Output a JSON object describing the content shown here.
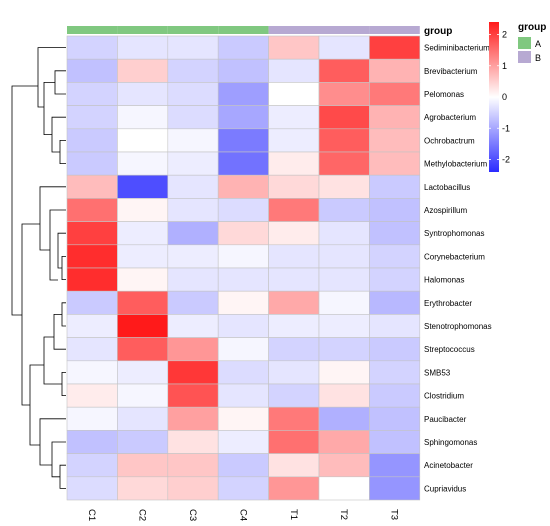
{
  "chart_data": {
    "type": "heatmap",
    "columns": [
      "C1",
      "C2",
      "C3",
      "C4",
      "T1",
      "T2",
      "T3"
    ],
    "column_groups": [
      "A",
      "A",
      "A",
      "A",
      "B",
      "B",
      "B"
    ],
    "group_annotation_label": "group",
    "rows": [
      "Sediminibacterium",
      "Brevibacterium",
      "Pelomonas",
      "Agrobacterium",
      "Ochrobactrum",
      "Methylobacterium",
      "Lactobacillus",
      "Azospirillum",
      "Syntrophomonas",
      "Corynebacterium",
      "Halomonas",
      "Erythrobacter",
      "Stenotrophomonas",
      "Streptococcus",
      "SMB53",
      "Clostridium",
      "Paucibacter",
      "Sphingomonas",
      "Acinetobacter",
      "Cupriavidus"
    ],
    "values": [
      [
        -0.5,
        -0.3,
        -0.3,
        -0.6,
        0.6,
        -0.3,
        2.0
      ],
      [
        -0.7,
        0.5,
        -0.5,
        -0.7,
        -0.3,
        1.7,
        0.8
      ],
      [
        -0.5,
        -0.3,
        -0.4,
        -1.1,
        0.0,
        1.2,
        1.4
      ],
      [
        -0.5,
        -0.1,
        -0.4,
        -1.0,
        -0.2,
        1.9,
        0.8
      ],
      [
        -0.6,
        0.0,
        -0.1,
        -1.5,
        -0.2,
        1.7,
        0.7
      ],
      [
        -0.6,
        -0.1,
        -0.2,
        -1.6,
        0.2,
        1.6,
        0.7
      ],
      [
        0.7,
        -2.0,
        -0.3,
        0.8,
        0.4,
        0.3,
        -0.6
      ],
      [
        1.5,
        0.1,
        -0.3,
        -0.4,
        1.4,
        -0.6,
        -0.7
      ],
      [
        2.0,
        -0.2,
        -0.9,
        0.4,
        0.2,
        -0.3,
        -0.7
      ],
      [
        2.2,
        -0.2,
        -0.2,
        -0.1,
        -0.3,
        -0.3,
        -0.5
      ],
      [
        2.2,
        0.1,
        -0.3,
        -0.3,
        -0.3,
        -0.3,
        -0.5
      ],
      [
        -0.6,
        1.7,
        -0.6,
        0.1,
        0.9,
        -0.1,
        -0.8
      ],
      [
        -0.2,
        2.4,
        -0.2,
        -0.3,
        -0.2,
        -0.2,
        -0.3
      ],
      [
        -0.3,
        1.7,
        1.1,
        -0.1,
        -0.5,
        -0.5,
        -0.6
      ],
      [
        -0.1,
        -0.2,
        2.1,
        -0.4,
        -0.3,
        0.1,
        -0.5
      ],
      [
        0.2,
        -0.1,
        1.8,
        -0.3,
        -0.5,
        0.3,
        -0.6
      ],
      [
        -0.1,
        -0.3,
        1.0,
        0.1,
        1.4,
        -0.9,
        -0.7
      ],
      [
        -0.7,
        -0.6,
        0.3,
        -0.2,
        1.5,
        0.9,
        -0.7
      ],
      [
        -0.5,
        0.6,
        0.6,
        -0.6,
        0.3,
        0.7,
        -1.2
      ],
      [
        -0.4,
        0.4,
        0.5,
        -0.5,
        1.1,
        0.0,
        -1.2
      ]
    ],
    "color_scale": {
      "min": -2.4,
      "max": 2.4,
      "low_color": "#2b2bff",
      "mid_color": "#ffffff",
      "high_color": "#ff1a1a",
      "legend_ticks": [
        2,
        1,
        0,
        -1,
        -2
      ]
    },
    "legend": {
      "title": "group",
      "entries": [
        {
          "label": "A",
          "color": "#80c880"
        },
        {
          "label": "B",
          "color": "#b7a9d2"
        }
      ],
      "placement": "right"
    },
    "dendrogram": "left",
    "grid_color": "#c4c4c4"
  }
}
